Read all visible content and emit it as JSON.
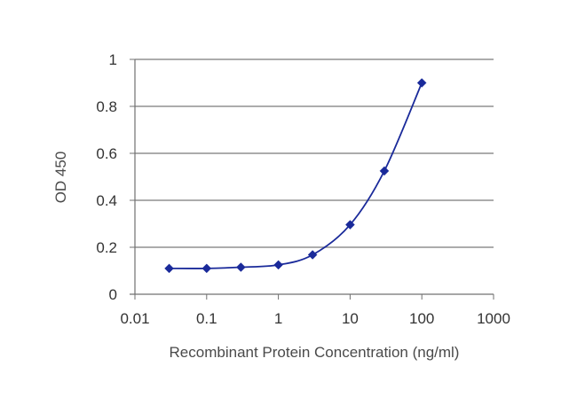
{
  "chart_data": {
    "type": "line",
    "title": "",
    "xlabel": "Recombinant Protein Concentration (ng/ml)",
    "ylabel": "OD 450",
    "x_scale": "log",
    "xlim": [
      0.01,
      1000
    ],
    "ylim": [
      0,
      1
    ],
    "x_ticks": [
      "0.01",
      "0.1",
      "1",
      "10",
      "100",
      "1000"
    ],
    "y_ticks": [
      "0",
      "0.2",
      "0.4",
      "0.6",
      "0.8",
      "1"
    ],
    "grid": "horizontal",
    "legend": "none",
    "series": [
      {
        "x": [
          0.03,
          0.1,
          0.3,
          1,
          3,
          10,
          30,
          100
        ],
        "y": [
          0.11,
          0.11,
          0.115,
          0.125,
          0.168,
          0.296,
          0.525,
          0.9
        ]
      }
    ],
    "colors": {
      "line": "#1a2a9a",
      "marker": "#1a2a9a",
      "grid": "#909090",
      "axis": "#707070",
      "plot_background": "#ffffff"
    }
  }
}
